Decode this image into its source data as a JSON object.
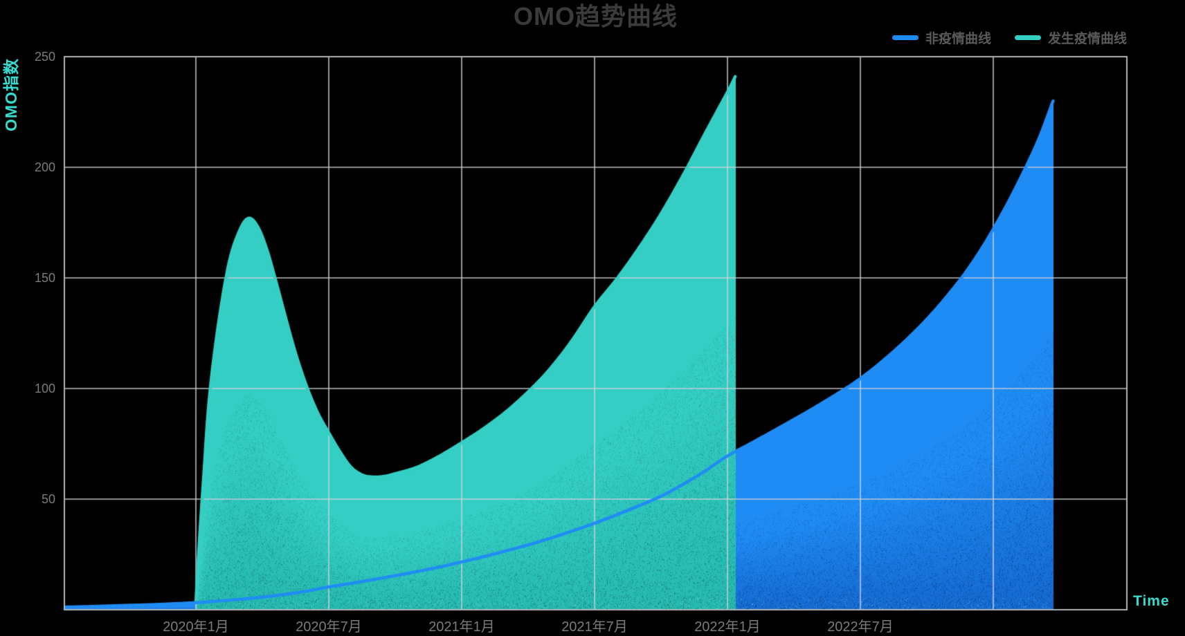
{
  "title": "OMO趋势曲线",
  "y_axis": {
    "label": "OMO指数",
    "label_color": "#35dccf",
    "ticks": [
      "50",
      "100",
      "150",
      "200",
      "250"
    ],
    "tick_values": [
      50,
      100,
      150,
      200,
      250
    ]
  },
  "x_axis": {
    "label": "Time",
    "label_color": "#38dccf",
    "tick_labels": [
      "2020年1月",
      "2020年7月",
      "2021年1月",
      "2021年7月",
      "2022年1月",
      "2022年7月"
    ],
    "tick_months": [
      0,
      6,
      12,
      18,
      24,
      30
    ]
  },
  "colors": {
    "background": "#000000",
    "grid": "#ced2d4",
    "frame": "#b2b6b9",
    "tick_text": "#7b7b7b",
    "title_text": "#3b3b3b",
    "legend_text": "#5a5a5a"
  },
  "chart_data": {
    "type": "area",
    "title": "OMO趋势曲线",
    "xlabel": "Time",
    "ylabel": "OMO指数",
    "x_unit": "months since 2020-01",
    "ylim": [
      0,
      250
    ],
    "xlim_months": [
      -5.94,
      42
    ],
    "grid": true,
    "legend_position": "top-right",
    "x_gridline_months": [
      0,
      6,
      12,
      18,
      24,
      30,
      36
    ],
    "y_gridline_values": [
      50,
      100,
      150,
      200,
      250
    ],
    "series": [
      {
        "name": "非疫情曲线",
        "color": "#1f8cf5",
        "color_deep": "#0b49ae",
        "spark_color": "rgba(130,230,255,0.55)",
        "dot_color": "4,28,90",
        "points": [
          [
            -5.94,
            1.2
          ],
          [
            -5,
            1.4
          ],
          [
            -4,
            1.7
          ],
          [
            -3,
            2.0
          ],
          [
            -2,
            2.3
          ],
          [
            -1,
            2.7
          ],
          [
            0,
            3.2
          ],
          [
            1,
            3.9
          ],
          [
            2,
            4.7
          ],
          [
            3,
            5.7
          ],
          [
            4,
            6.9
          ],
          [
            5,
            8.4
          ],
          [
            6,
            10.3
          ],
          [
            7,
            11.9
          ],
          [
            8,
            13.6
          ],
          [
            9,
            15.4
          ],
          [
            10,
            17.3
          ],
          [
            11,
            19.3
          ],
          [
            12,
            21.6
          ],
          [
            13,
            24.0
          ],
          [
            14,
            26.6
          ],
          [
            15,
            29.3
          ],
          [
            16,
            32.3
          ],
          [
            17,
            35.6
          ],
          [
            18,
            39.1
          ],
          [
            19,
            42.9
          ],
          [
            20,
            47.0
          ],
          [
            21,
            51.3
          ],
          [
            22,
            56.7
          ],
          [
            23,
            62.8
          ],
          [
            24,
            69.5
          ],
          [
            25,
            74.9
          ],
          [
            26,
            80.4
          ],
          [
            27,
            86.0
          ],
          [
            28,
            91.8
          ],
          [
            29,
            97.9
          ],
          [
            30,
            104.5
          ],
          [
            31,
            112.4
          ],
          [
            32,
            121.3
          ],
          [
            33,
            131.3
          ],
          [
            34,
            142.8
          ],
          [
            35,
            156.0
          ],
          [
            36,
            172.0
          ],
          [
            37,
            190.5
          ],
          [
            38,
            211.5
          ],
          [
            38.7,
            230.0
          ]
        ]
      },
      {
        "name": "发生疫情曲线",
        "color": "#34cec4",
        "color_deep": "#17a39a",
        "spark_color": "rgba(140,255,245,0.55)",
        "dot_color": "6,70,70",
        "points": [
          [
            0,
            3.2
          ],
          [
            0.15,
            30
          ],
          [
            0.35,
            60
          ],
          [
            0.6,
            95
          ],
          [
            1.0,
            128
          ],
          [
            1.5,
            157
          ],
          [
            2.0,
            172
          ],
          [
            2.4,
            177
          ],
          [
            2.8,
            173
          ],
          [
            3.2,
            163
          ],
          [
            3.6,
            149
          ],
          [
            4.0,
            134
          ],
          [
            4.5,
            116
          ],
          [
            5.0,
            101
          ],
          [
            5.5,
            89
          ],
          [
            6.0,
            80
          ],
          [
            6.5,
            71.5
          ],
          [
            7.0,
            64.5
          ],
          [
            7.5,
            61
          ],
          [
            8.0,
            60
          ],
          [
            8.5,
            60.3
          ],
          [
            9.0,
            61.5
          ],
          [
            10,
            64.5
          ],
          [
            11,
            69.5
          ],
          [
            12,
            75.5
          ],
          [
            13,
            82
          ],
          [
            14,
            89.5
          ],
          [
            15,
            98.5
          ],
          [
            16,
            109
          ],
          [
            17,
            122
          ],
          [
            18,
            137
          ],
          [
            19,
            149.5
          ],
          [
            20,
            163.5
          ],
          [
            21,
            179
          ],
          [
            22,
            196.5
          ],
          [
            23,
            215.5
          ],
          [
            24,
            234
          ],
          [
            24.35,
            241
          ]
        ]
      }
    ]
  }
}
